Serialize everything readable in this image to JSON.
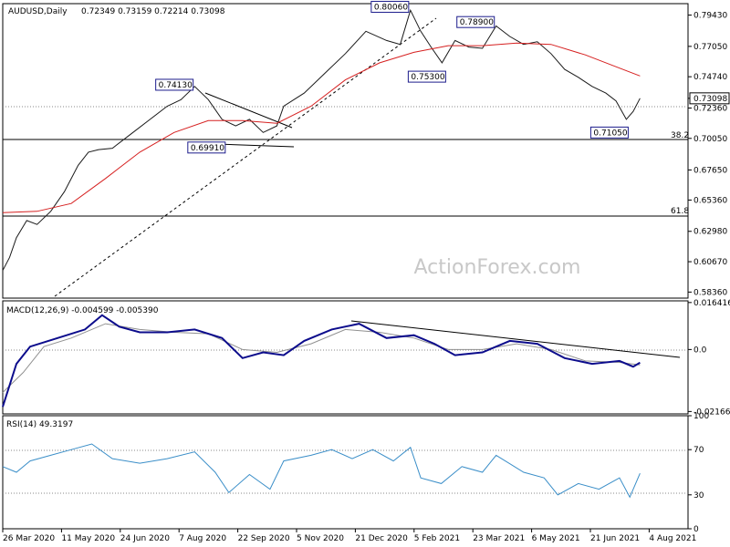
{
  "chart_data": {
    "type": "line",
    "symbol": "AUDUSD,Daily",
    "ohlc_text": "0.72349 0.73159 0.72214 0.73098",
    "watermark": "ActionForex.com",
    "colors": {
      "price": "#1a1a1a",
      "ma": "#d62020",
      "macd": "#0c0c8c",
      "signal": "#909090",
      "rsi": "#3a8ec8",
      "box_border": "#1c1c8c"
    },
    "x_axis": {
      "ticks": [
        "26 Mar 2020",
        "11 May 2020",
        "24 Jun 2020",
        "7 Aug 2020",
        "22 Sep 2020",
        "5 Nov 2020",
        "21 Dec 2020",
        "5 Feb 2021",
        "23 Mar 2021",
        "6 May 2021",
        "21 Jun 2021",
        "4 Aug 2021"
      ]
    },
    "price_panel": {
      "y_ticks": [
        "0.79430",
        "0.77050",
        "0.74740",
        "0.73098",
        "0.72360",
        "0.70050",
        "0.67650",
        "0.65360",
        "0.62980",
        "0.60670",
        "0.58360"
      ],
      "ylim": [
        0.579,
        0.803
      ],
      "current": 0.73098,
      "current_label": "0.73098",
      "fib_levels": [
        {
          "label": "38.2",
          "value": 0.7084
        },
        {
          "label": "61.8",
          "value": 0.6495
        }
      ],
      "annotations": [
        {
          "label": "0.74130",
          "x": 0.2805,
          "y": 0.7413
        },
        {
          "label": "0.69910",
          "x": 0.322,
          "y": 0.6991
        },
        {
          "label": "0.80060",
          "x": 0.595,
          "y": 0.8006
        },
        {
          "label": "0.75300",
          "x": 0.641,
          "y": 0.753
        },
        {
          "label": "0.78900",
          "x": 0.72,
          "y": 0.789
        },
        {
          "label": "0.71050",
          "x": 0.91,
          "y": 0.7105
        }
      ],
      "close_series": [
        {
          "x": 0.0,
          "y": 0.6
        },
        {
          "x": 0.01,
          "y": 0.61
        },
        {
          "x": 0.02,
          "y": 0.625
        },
        {
          "x": 0.035,
          "y": 0.638
        },
        {
          "x": 0.05,
          "y": 0.635
        },
        {
          "x": 0.07,
          "y": 0.645
        },
        {
          "x": 0.09,
          "y": 0.66
        },
        {
          "x": 0.11,
          "y": 0.68
        },
        {
          "x": 0.125,
          "y": 0.69
        },
        {
          "x": 0.14,
          "y": 0.692
        },
        {
          "x": 0.16,
          "y": 0.693
        },
        {
          "x": 0.19,
          "y": 0.705
        },
        {
          "x": 0.215,
          "y": 0.715
        },
        {
          "x": 0.24,
          "y": 0.725
        },
        {
          "x": 0.26,
          "y": 0.73
        },
        {
          "x": 0.28,
          "y": 0.74
        },
        {
          "x": 0.3,
          "y": 0.73
        },
        {
          "x": 0.32,
          "y": 0.715
        },
        {
          "x": 0.34,
          "y": 0.71
        },
        {
          "x": 0.36,
          "y": 0.715
        },
        {
          "x": 0.38,
          "y": 0.705
        },
        {
          "x": 0.4,
          "y": 0.71
        },
        {
          "x": 0.41,
          "y": 0.725
        },
        {
          "x": 0.44,
          "y": 0.735
        },
        {
          "x": 0.47,
          "y": 0.75
        },
        {
          "x": 0.5,
          "y": 0.765
        },
        {
          "x": 0.53,
          "y": 0.782
        },
        {
          "x": 0.56,
          "y": 0.775
        },
        {
          "x": 0.58,
          "y": 0.772
        },
        {
          "x": 0.595,
          "y": 0.798
        },
        {
          "x": 0.61,
          "y": 0.782
        },
        {
          "x": 0.625,
          "y": 0.77
        },
        {
          "x": 0.641,
          "y": 0.758
        },
        {
          "x": 0.66,
          "y": 0.775
        },
        {
          "x": 0.68,
          "y": 0.77
        },
        {
          "x": 0.7,
          "y": 0.769
        },
        {
          "x": 0.72,
          "y": 0.786
        },
        {
          "x": 0.74,
          "y": 0.778
        },
        {
          "x": 0.76,
          "y": 0.772
        },
        {
          "x": 0.78,
          "y": 0.774
        },
        {
          "x": 0.8,
          "y": 0.765
        },
        {
          "x": 0.82,
          "y": 0.753
        },
        {
          "x": 0.84,
          "y": 0.747
        },
        {
          "x": 0.86,
          "y": 0.74
        },
        {
          "x": 0.88,
          "y": 0.735
        },
        {
          "x": 0.895,
          "y": 0.729
        },
        {
          "x": 0.91,
          "y": 0.715
        },
        {
          "x": 0.92,
          "y": 0.721
        },
        {
          "x": 0.93,
          "y": 0.731
        }
      ],
      "ma_series": [
        {
          "x": 0.0,
          "y": 0.644
        },
        {
          "x": 0.05,
          "y": 0.645
        },
        {
          "x": 0.1,
          "y": 0.651
        },
        {
          "x": 0.15,
          "y": 0.67
        },
        {
          "x": 0.2,
          "y": 0.69
        },
        {
          "x": 0.25,
          "y": 0.705
        },
        {
          "x": 0.3,
          "y": 0.714
        },
        {
          "x": 0.35,
          "y": 0.714
        },
        {
          "x": 0.4,
          "y": 0.712
        },
        {
          "x": 0.45,
          "y": 0.725
        },
        {
          "x": 0.5,
          "y": 0.745
        },
        {
          "x": 0.55,
          "y": 0.758
        },
        {
          "x": 0.6,
          "y": 0.766
        },
        {
          "x": 0.65,
          "y": 0.771
        },
        {
          "x": 0.7,
          "y": 0.771
        },
        {
          "x": 0.75,
          "y": 0.773
        },
        {
          "x": 0.8,
          "y": 0.772
        },
        {
          "x": 0.85,
          "y": 0.764
        },
        {
          "x": 0.9,
          "y": 0.754
        },
        {
          "x": 0.93,
          "y": 0.748
        }
      ]
    },
    "macd_panel": {
      "title": "MACD(12,26,9) -0.004599 -0.005390",
      "y_ticks": [
        "0.016416",
        "0.0",
        "-0.021665"
      ],
      "ylim": [
        -0.0225,
        0.017
      ],
      "macd_series": [
        {
          "x": 0.0,
          "y": -0.02
        },
        {
          "x": 0.02,
          "y": -0.005
        },
        {
          "x": 0.04,
          "y": 0.001
        },
        {
          "x": 0.08,
          "y": 0.004
        },
        {
          "x": 0.12,
          "y": 0.007
        },
        {
          "x": 0.145,
          "y": 0.012
        },
        {
          "x": 0.17,
          "y": 0.008
        },
        {
          "x": 0.2,
          "y": 0.006
        },
        {
          "x": 0.24,
          "y": 0.006
        },
        {
          "x": 0.28,
          "y": 0.007
        },
        {
          "x": 0.32,
          "y": 0.004
        },
        {
          "x": 0.35,
          "y": -0.003
        },
        {
          "x": 0.38,
          "y": -0.001
        },
        {
          "x": 0.41,
          "y": -0.002
        },
        {
          "x": 0.44,
          "y": 0.003
        },
        {
          "x": 0.48,
          "y": 0.007
        },
        {
          "x": 0.52,
          "y": 0.009
        },
        {
          "x": 0.56,
          "y": 0.004
        },
        {
          "x": 0.6,
          "y": 0.005
        },
        {
          "x": 0.63,
          "y": 0.002
        },
        {
          "x": 0.66,
          "y": -0.002
        },
        {
          "x": 0.7,
          "y": -0.001
        },
        {
          "x": 0.74,
          "y": 0.003
        },
        {
          "x": 0.78,
          "y": 0.002
        },
        {
          "x": 0.82,
          "y": -0.003
        },
        {
          "x": 0.86,
          "y": -0.005
        },
        {
          "x": 0.9,
          "y": -0.004
        },
        {
          "x": 0.92,
          "y": -0.006
        },
        {
          "x": 0.93,
          "y": -0.0046
        }
      ],
      "signal_series": [
        {
          "x": 0.0,
          "y": -0.015
        },
        {
          "x": 0.03,
          "y": -0.008
        },
        {
          "x": 0.06,
          "y": 0.001
        },
        {
          "x": 0.1,
          "y": 0.004
        },
        {
          "x": 0.15,
          "y": 0.009
        },
        {
          "x": 0.2,
          "y": 0.007
        },
        {
          "x": 0.25,
          "y": 0.006
        },
        {
          "x": 0.3,
          "y": 0.0055
        },
        {
          "x": 0.35,
          "y": 0.0
        },
        {
          "x": 0.4,
          "y": -0.001
        },
        {
          "x": 0.45,
          "y": 0.002
        },
        {
          "x": 0.5,
          "y": 0.007
        },
        {
          "x": 0.55,
          "y": 0.006
        },
        {
          "x": 0.6,
          "y": 0.004
        },
        {
          "x": 0.65,
          "y": 0.0
        },
        {
          "x": 0.7,
          "y": 0.0
        },
        {
          "x": 0.75,
          "y": 0.002
        },
        {
          "x": 0.8,
          "y": 0.0
        },
        {
          "x": 0.85,
          "y": -0.004
        },
        {
          "x": 0.9,
          "y": -0.0045
        },
        {
          "x": 0.93,
          "y": -0.0054
        }
      ]
    },
    "rsi_panel": {
      "title": "RSI(14) 49.3197",
      "y_ticks": [
        "100",
        "70",
        "30",
        "0"
      ],
      "ylim": [
        0,
        100
      ],
      "levels": [
        70,
        30
      ],
      "rsi_series": [
        {
          "x": 0.0,
          "y": 55
        },
        {
          "x": 0.02,
          "y": 50
        },
        {
          "x": 0.04,
          "y": 60
        },
        {
          "x": 0.07,
          "y": 65
        },
        {
          "x": 0.1,
          "y": 70
        },
        {
          "x": 0.13,
          "y": 75
        },
        {
          "x": 0.16,
          "y": 62
        },
        {
          "x": 0.2,
          "y": 58
        },
        {
          "x": 0.24,
          "y": 62
        },
        {
          "x": 0.28,
          "y": 68
        },
        {
          "x": 0.31,
          "y": 50
        },
        {
          "x": 0.33,
          "y": 32
        },
        {
          "x": 0.36,
          "y": 48
        },
        {
          "x": 0.39,
          "y": 35
        },
        {
          "x": 0.41,
          "y": 60
        },
        {
          "x": 0.45,
          "y": 65
        },
        {
          "x": 0.48,
          "y": 70
        },
        {
          "x": 0.51,
          "y": 62
        },
        {
          "x": 0.54,
          "y": 70
        },
        {
          "x": 0.57,
          "y": 60
        },
        {
          "x": 0.595,
          "y": 72
        },
        {
          "x": 0.61,
          "y": 45
        },
        {
          "x": 0.64,
          "y": 40
        },
        {
          "x": 0.67,
          "y": 55
        },
        {
          "x": 0.7,
          "y": 50
        },
        {
          "x": 0.72,
          "y": 65
        },
        {
          "x": 0.76,
          "y": 50
        },
        {
          "x": 0.79,
          "y": 45
        },
        {
          "x": 0.81,
          "y": 30
        },
        {
          "x": 0.84,
          "y": 40
        },
        {
          "x": 0.87,
          "y": 35
        },
        {
          "x": 0.9,
          "y": 45
        },
        {
          "x": 0.915,
          "y": 28
        },
        {
          "x": 0.93,
          "y": 49
        }
      ]
    }
  }
}
